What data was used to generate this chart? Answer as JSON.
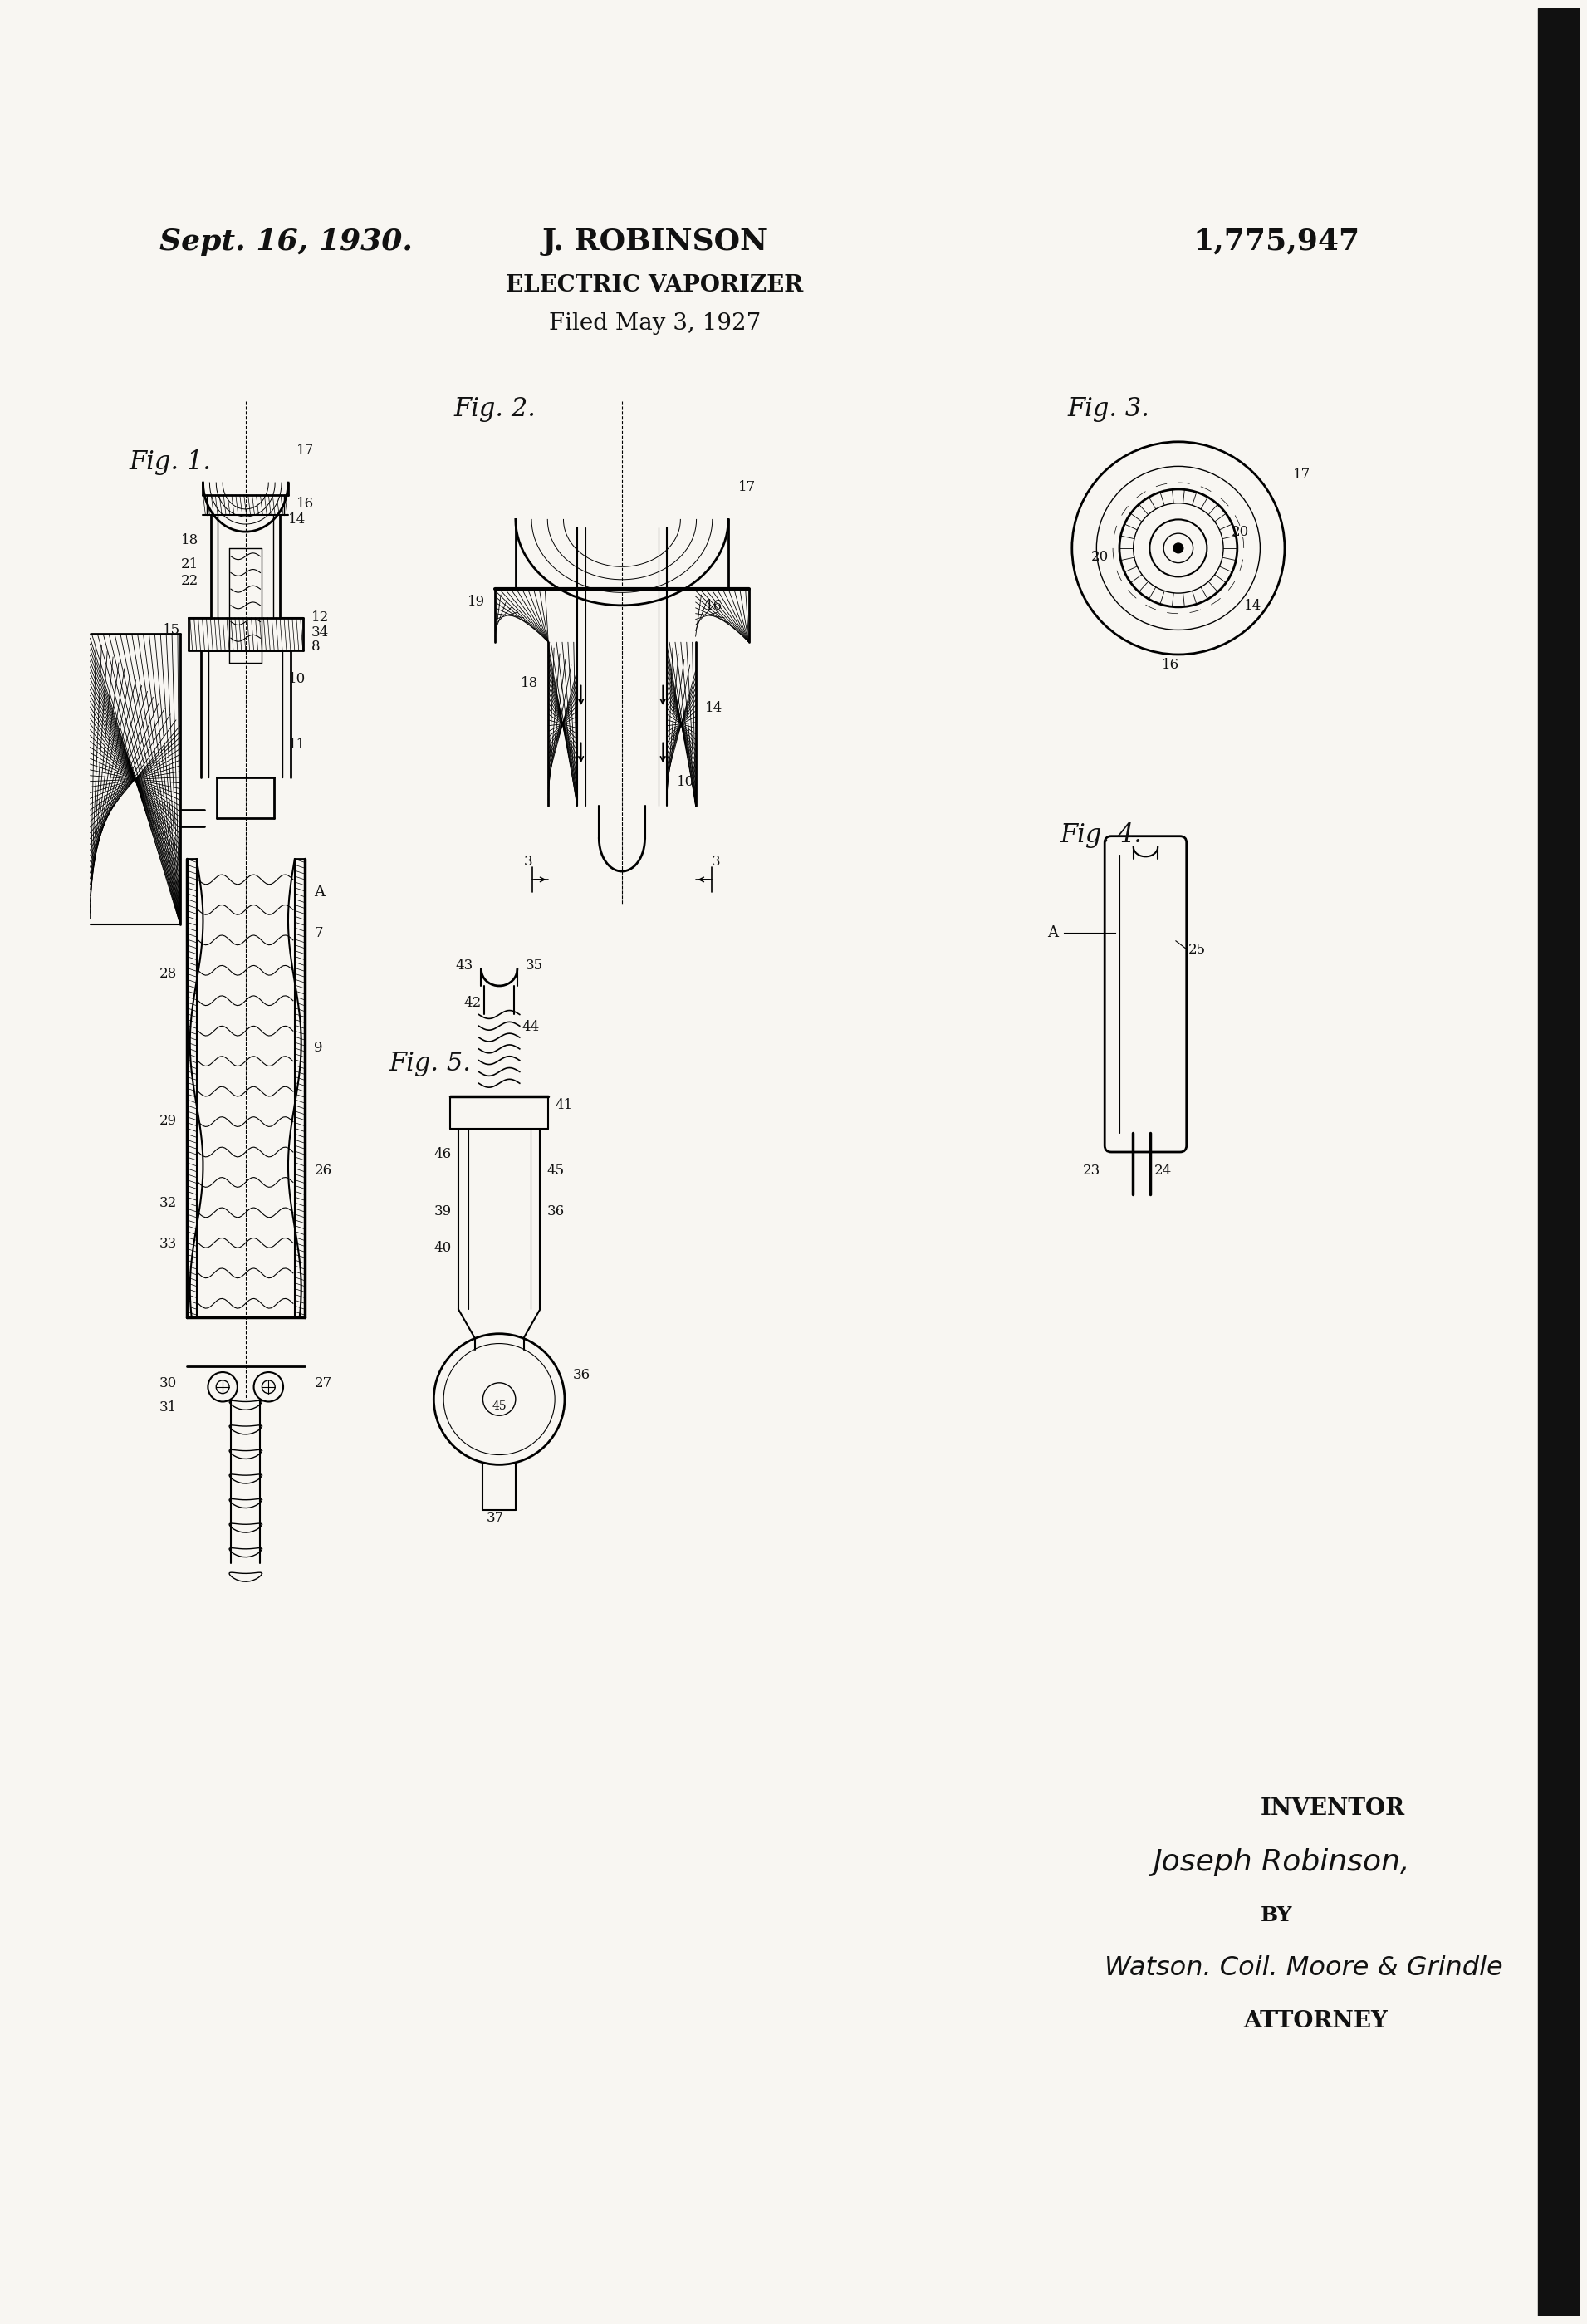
{
  "bg_color": "#f0eeea",
  "title_date": "Sept. 16, 1930.",
  "title_name": "J. ROBINSON",
  "title_patent": "1,775,947",
  "title_device": "ELECTRIC VAPORIZER",
  "title_filed": "Filed May 3, 1927",
  "inventor_label": "INVENTOR",
  "inventor_name": "Joseph Robinson,",
  "by_label": "BY",
  "attorney_name": "Watson. Coil. Moore & Grindle",
  "attorney_label": "ATTORNEY",
  "right_bar_color": "#111111",
  "text_color": "#111111",
  "paper_color": "#f8f6f2"
}
